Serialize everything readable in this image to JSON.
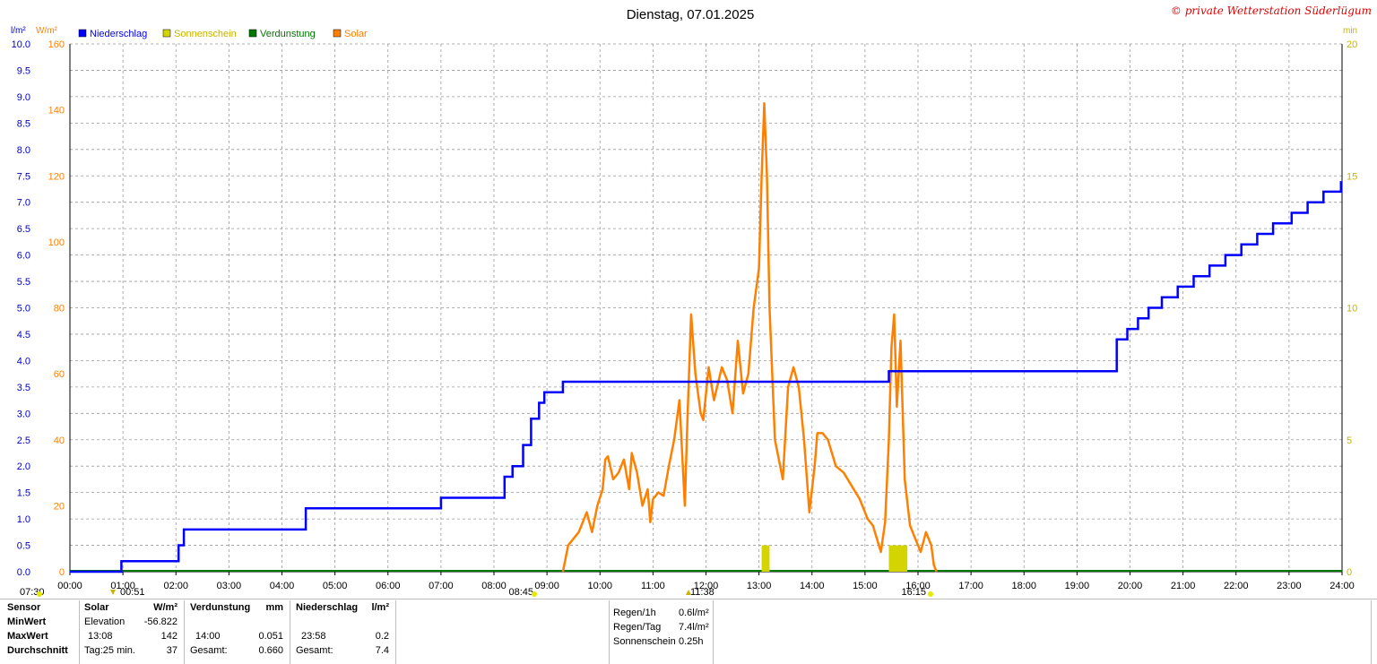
{
  "chart_data": {
    "type": "line",
    "title": "Dienstag, 07.01.2025",
    "watermark": "© private Wetterstation Süderlügum",
    "left_axis1_unit": "l/m²",
    "left_axis2_unit": "W/m²",
    "right_axis_unit": "min",
    "x_ticks": [
      "00:00",
      "01:00",
      "02:00",
      "03:00",
      "04:00",
      "05:00",
      "06:00",
      "07:00",
      "08:00",
      "09:00",
      "10:00",
      "11:00",
      "12:00",
      "13:00",
      "14:00",
      "15:00",
      "16:00",
      "17:00",
      "18:00",
      "19:00",
      "20:00",
      "21:00",
      "22:00",
      "23:00",
      "24:00"
    ],
    "y_left1_ticks": [
      "0.0",
      "0.5",
      "1.0",
      "1.5",
      "2.0",
      "2.5",
      "3.0",
      "3.5",
      "4.0",
      "4.5",
      "5.0",
      "5.5",
      "6.0",
      "6.5",
      "7.0",
      "7.5",
      "8.0",
      "8.5",
      "9.0",
      "9.5",
      "10.0"
    ],
    "y_left2_ticks": [
      "0",
      "20",
      "40",
      "60",
      "80",
      "100",
      "120",
      "140",
      "160"
    ],
    "y_right_ticks": [
      "0",
      "5",
      "10",
      "15",
      "20"
    ],
    "y_left1_range": [
      0,
      10
    ],
    "y_left2_range": [
      0,
      160
    ],
    "y_right_range": [
      0,
      20
    ],
    "x_range_hours": [
      0,
      24
    ],
    "grid": true,
    "legend": [
      {
        "name": "Niederschlag",
        "color": "#0000ff"
      },
      {
        "name": "Sonnenschein",
        "color": "#d4d400"
      },
      {
        "name": "Verdunstung",
        "color": "#007700"
      },
      {
        "name": "Solar",
        "color": "#ff8000"
      }
    ],
    "series": [
      {
        "name": "Niederschlag",
        "unit": "l/m²",
        "color": "#0000ff",
        "step": true,
        "points": [
          [
            0,
            0
          ],
          [
            0.95,
            0
          ],
          [
            0.97,
            0.2
          ],
          [
            2.0,
            0.2
          ],
          [
            2.05,
            0.5
          ],
          [
            2.15,
            0.8
          ],
          [
            4.35,
            0.8
          ],
          [
            4.45,
            1.2
          ],
          [
            6.95,
            1.2
          ],
          [
            7.0,
            1.4
          ],
          [
            8.1,
            1.4
          ],
          [
            8.2,
            1.8
          ],
          [
            8.35,
            2.0
          ],
          [
            8.55,
            2.4
          ],
          [
            8.7,
            2.9
          ],
          [
            8.85,
            3.2
          ],
          [
            8.95,
            3.4
          ],
          [
            9.25,
            3.4
          ],
          [
            9.3,
            3.6
          ],
          [
            15.35,
            3.6
          ],
          [
            15.45,
            3.8
          ],
          [
            19.6,
            3.8
          ],
          [
            19.75,
            4.4
          ],
          [
            19.95,
            4.6
          ],
          [
            20.15,
            4.8
          ],
          [
            20.35,
            5.0
          ],
          [
            20.6,
            5.2
          ],
          [
            20.9,
            5.4
          ],
          [
            21.2,
            5.6
          ],
          [
            21.5,
            5.8
          ],
          [
            21.8,
            6.0
          ],
          [
            22.1,
            6.2
          ],
          [
            22.4,
            6.4
          ],
          [
            22.7,
            6.6
          ],
          [
            23.05,
            6.8
          ],
          [
            23.35,
            7.0
          ],
          [
            23.65,
            7.2
          ],
          [
            23.98,
            7.4
          ]
        ]
      },
      {
        "name": "Solar",
        "unit": "W/m²",
        "color": "#ff8000",
        "points": [
          [
            9.3,
            0
          ],
          [
            9.4,
            8
          ],
          [
            9.6,
            12
          ],
          [
            9.75,
            18
          ],
          [
            9.85,
            12
          ],
          [
            9.95,
            20
          ],
          [
            10.05,
            25
          ],
          [
            10.1,
            34
          ],
          [
            10.15,
            35
          ],
          [
            10.25,
            28
          ],
          [
            10.35,
            30
          ],
          [
            10.45,
            34
          ],
          [
            10.55,
            25
          ],
          [
            10.6,
            36
          ],
          [
            10.7,
            30
          ],
          [
            10.8,
            20
          ],
          [
            10.9,
            25
          ],
          [
            10.95,
            15
          ],
          [
            11.0,
            22
          ],
          [
            11.1,
            24
          ],
          [
            11.2,
            23
          ],
          [
            11.3,
            32
          ],
          [
            11.4,
            40
          ],
          [
            11.5,
            52
          ],
          [
            11.6,
            20
          ],
          [
            11.65,
            46
          ],
          [
            11.72,
            78
          ],
          [
            11.8,
            60
          ],
          [
            11.9,
            48
          ],
          [
            11.95,
            46
          ],
          [
            12.05,
            62
          ],
          [
            12.15,
            52
          ],
          [
            12.3,
            62
          ],
          [
            12.4,
            58
          ],
          [
            12.5,
            48
          ],
          [
            12.6,
            70
          ],
          [
            12.7,
            54
          ],
          [
            12.8,
            60
          ],
          [
            12.9,
            80
          ],
          [
            13.0,
            92
          ],
          [
            13.05,
            120
          ],
          [
            13.1,
            142
          ],
          [
            13.15,
            120
          ],
          [
            13.2,
            80
          ],
          [
            13.3,
            40
          ],
          [
            13.45,
            28
          ],
          [
            13.55,
            56
          ],
          [
            13.65,
            62
          ],
          [
            13.75,
            56
          ],
          [
            13.85,
            40
          ],
          [
            13.95,
            18
          ],
          [
            14.05,
            32
          ],
          [
            14.1,
            42
          ],
          [
            14.2,
            42
          ],
          [
            14.3,
            40
          ],
          [
            14.45,
            32
          ],
          [
            14.6,
            30
          ],
          [
            14.75,
            26
          ],
          [
            14.9,
            22
          ],
          [
            15.05,
            16
          ],
          [
            15.15,
            14
          ],
          [
            15.3,
            6
          ],
          [
            15.38,
            15
          ],
          [
            15.45,
            40
          ],
          [
            15.5,
            68
          ],
          [
            15.55,
            78
          ],
          [
            15.6,
            50
          ],
          [
            15.67,
            70
          ],
          [
            15.75,
            28
          ],
          [
            15.85,
            14
          ],
          [
            15.95,
            10
          ],
          [
            16.05,
            6
          ],
          [
            16.15,
            12
          ],
          [
            16.25,
            8
          ],
          [
            16.3,
            2
          ],
          [
            16.35,
            0
          ]
        ]
      },
      {
        "name": "Sonnenschein",
        "unit": "min",
        "color": "#d4d400",
        "bars": [
          [
            13.05,
            13.2,
            1
          ],
          [
            15.45,
            15.8,
            1
          ]
        ]
      },
      {
        "name": "Verdunstung",
        "unit": "mm",
        "color": "#007700",
        "points": [
          [
            0,
            0
          ],
          [
            24,
            0
          ]
        ]
      }
    ],
    "markers": [
      {
        "label": "07:30",
        "kind": "sunrise"
      },
      {
        "label": "08:45",
        "kind": "sunrise"
      },
      {
        "label": "00:51",
        "kind": "min"
      },
      {
        "label": "11:38",
        "kind": "max"
      },
      {
        "label": "16:15",
        "kind": "sunset"
      }
    ]
  },
  "table": {
    "col1": [
      "Sensor",
      "MinWert",
      "MaxWert",
      "Durchschnitt"
    ],
    "solar_header": "Solar",
    "solar_unit": "W/m²",
    "solar_min_label": "Elevation",
    "solar_min_value": "-56.822",
    "solar_max_time": "13:08",
    "solar_max_value": "142",
    "solar_avg_label": "Tag:25 min.",
    "solar_avg_value": "37",
    "verd_header": "Verdunstung",
    "verd_unit": "mm",
    "verd_max_time": "14:00",
    "verd_max_value": "0.051",
    "verd_total_label": "Gesamt:",
    "verd_total_value": "0.660",
    "nied_header": "Niederschlag",
    "nied_unit": "l/m²",
    "nied_max_time": "23:58",
    "nied_max_value": "0.2",
    "nied_total_label": "Gesamt:",
    "nied_total_value": "7.4",
    "summary": [
      {
        "label": "Regen/1h",
        "value": "0.6l/m²"
      },
      {
        "label": "Regen/Tag",
        "value": "7.4l/m²"
      },
      {
        "label": "Sonnenschein",
        "value": "0.25h"
      }
    ]
  }
}
